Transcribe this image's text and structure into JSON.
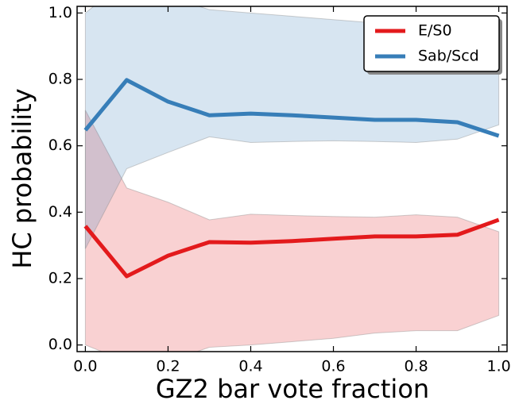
{
  "chart_data": {
    "type": "line",
    "xlabel": "GZ2 bar vote fraction",
    "ylabel": "HC probability",
    "x": [
      0.0,
      0.1,
      0.2,
      0.3,
      0.4,
      0.5,
      0.6,
      0.7,
      0.8,
      0.9,
      1.0
    ],
    "series": [
      {
        "name": "E/S0",
        "color": "#e31a1c",
        "values": [
          0.358,
          0.207,
          0.269,
          0.31,
          0.308,
          0.313,
          0.32,
          0.327,
          0.327,
          0.332,
          0.377
        ],
        "upper": [
          0.707,
          0.473,
          0.43,
          0.377,
          0.394,
          0.39,
          0.387,
          0.385,
          0.392,
          0.385,
          0.341
        ],
        "lower": [
          0.0,
          -0.05,
          -0.05,
          -0.007,
          0.0,
          0.01,
          0.02,
          0.036,
          0.043,
          0.043,
          0.089
        ]
      },
      {
        "name": "Sab/Scd",
        "color": "#377eb8",
        "values": [
          0.647,
          0.798,
          0.733,
          0.692,
          0.697,
          0.692,
          0.685,
          0.678,
          0.678,
          0.671,
          0.63
        ],
        "upper": [
          1.0,
          1.1,
          1.05,
          1.01,
          1.0,
          0.99,
          0.98,
          0.97,
          0.97,
          0.96,
          0.92
        ],
        "lower": [
          0.29,
          0.531,
          0.58,
          0.627,
          0.61,
          0.613,
          0.615,
          0.613,
          0.61,
          0.62,
          0.663
        ]
      }
    ],
    "xlim": [
      -0.02,
      1.02
    ],
    "ylim": [
      -0.02,
      1.02
    ],
    "xticks": [
      {
        "value": 0,
        "label": "0.0"
      },
      0.2,
      0.4,
      0.6,
      0.8,
      {
        "value": 1,
        "label": "1.0"
      }
    ],
    "yticks": [
      {
        "value": 0,
        "label": "0.0"
      },
      0.2,
      0.4,
      0.6,
      0.8,
      {
        "value": 1,
        "label": "1.0"
      }
    ],
    "legend": "upper right"
  }
}
